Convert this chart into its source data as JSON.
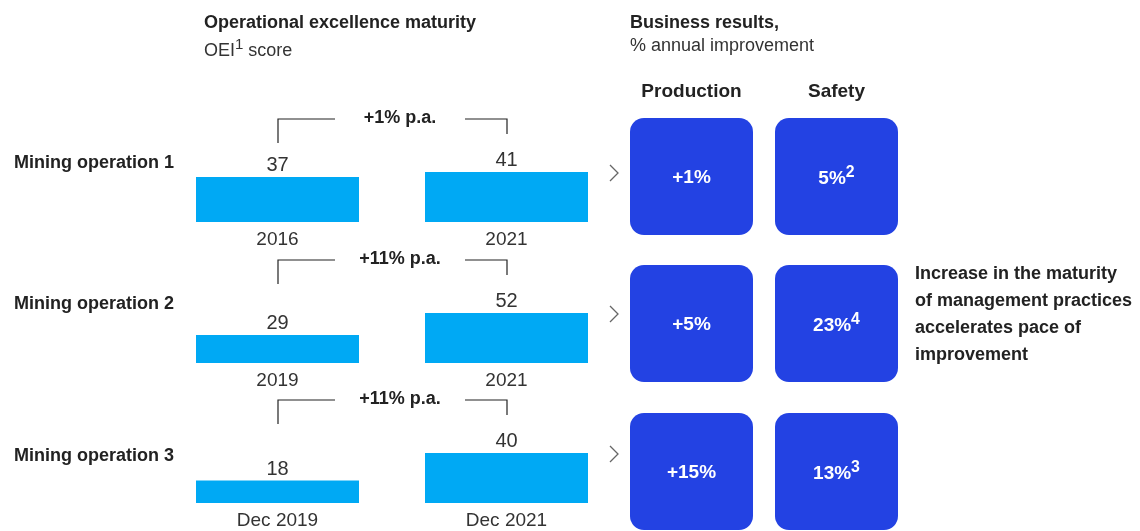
{
  "chart_data": [
    {
      "type": "bar",
      "title": "Operational excellence maturity",
      "subtitle": "OEI$^{1}$ score",
      "ylabel": "Mining operation 1",
      "annotations": [
        "+1% p.a."
      ],
      "categories": [
        "2016",
        "2021"
      ],
      "values": [
        37,
        41
      ],
      "color": "#00a9f4",
      "data_labels": true
    },
    {
      "type": "bar",
      "ylabel": "Mining operation 2",
      "annotations": [
        "+11% p.a."
      ],
      "categories": [
        "2019",
        "2021"
      ],
      "values": [
        29,
        52
      ],
      "color": "#00a9f4",
      "data_labels": true
    },
    {
      "type": "bar",
      "ylabel": "Mining operation 3",
      "annotations": [
        "+11% p.a."
      ],
      "categories": [
        "Dec 2019",
        "Dec 2021"
      ],
      "values": [
        18,
        40
      ],
      "color": "#00a9f4",
      "data_labels": true
    },
    {
      "type": "other",
      "title": "Business results,",
      "subtitle": "% annual improvement",
      "categories": [
        "Production",
        "Safety"
      ],
      "color": "#2342e3",
      "annotations": [
        "+1%",
        "5%$^{2}$",
        "+5%",
        "23%$^{4}$",
        "+15%",
        "13%$^{3}$",
        "Increase in the maturity of management practices accelerates pace of improvement"
      ]
    }
  ]
}
